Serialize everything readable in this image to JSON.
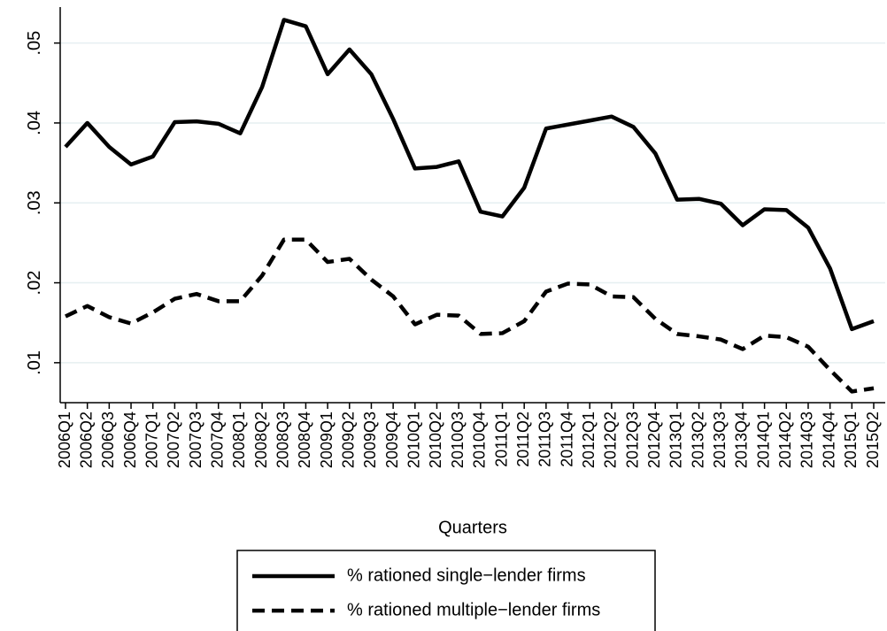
{
  "chart_data": {
    "type": "line",
    "x_label": "Quarters",
    "categories": [
      "2006Q1",
      "2006Q2",
      "2006Q3",
      "2006Q4",
      "2007Q1",
      "2007Q2",
      "2007Q3",
      "2007Q4",
      "2008Q1",
      "2008Q2",
      "2008Q3",
      "2008Q4",
      "2009Q1",
      "2009Q2",
      "2009Q3",
      "2009Q4",
      "2010Q1",
      "2010Q2",
      "2010Q3",
      "2010Q4",
      "2011Q1",
      "2011Q2",
      "2011Q3",
      "2011Q4",
      "2012Q1",
      "2012Q2",
      "2012Q3",
      "2012Q4",
      "2013Q1",
      "2013Q2",
      "2013Q3",
      "2013Q4",
      "2014Q1",
      "2014Q2",
      "2014Q3",
      "2014Q4",
      "2015Q1",
      "2015Q2"
    ],
    "series": [
      {
        "name": "% rationed single−lender firms",
        "color": "#000000",
        "dash": "solid",
        "values": [
          0.037,
          0.04,
          0.037,
          0.0348,
          0.0358,
          0.0401,
          0.0402,
          0.0399,
          0.0387,
          0.0445,
          0.0529,
          0.0521,
          0.0461,
          0.0492,
          0.0461,
          0.0405,
          0.0343,
          0.0345,
          0.0352,
          0.0289,
          0.0283,
          0.0319,
          0.0393,
          0.0398,
          0.0403,
          0.0408,
          0.0395,
          0.0362,
          0.0304,
          0.0305,
          0.0299,
          0.0272,
          0.0292,
          0.0291,
          0.0269,
          0.0218,
          0.0142,
          0.0152
        ]
      },
      {
        "name": "% rationed multiple−lender firms",
        "color": "#000000",
        "dash": "dashed",
        "values": [
          0.0158,
          0.0171,
          0.0157,
          0.0149,
          0.0163,
          0.018,
          0.0186,
          0.0177,
          0.0177,
          0.0209,
          0.0254,
          0.0254,
          0.0226,
          0.023,
          0.0204,
          0.0183,
          0.0148,
          0.016,
          0.0159,
          0.0136,
          0.0137,
          0.0152,
          0.0189,
          0.0199,
          0.0198,
          0.0183,
          0.0182,
          0.0155,
          0.0136,
          0.0133,
          0.0129,
          0.0117,
          0.0134,
          0.0132,
          0.012,
          0.0091,
          0.0064,
          0.0068
        ]
      }
    ],
    "ylim": [
      0.005,
      0.0545
    ],
    "yticks": [
      {
        "value": 0.01,
        "label": ".01"
      },
      {
        "value": 0.02,
        "label": ".02"
      },
      {
        "value": 0.03,
        "label": ".03"
      },
      {
        "value": 0.04,
        "label": ".04"
      },
      {
        "value": 0.05,
        "label": ".05"
      }
    ],
    "grid": true,
    "grid_color": "#e6eff1",
    "legend_position": "bottom"
  }
}
